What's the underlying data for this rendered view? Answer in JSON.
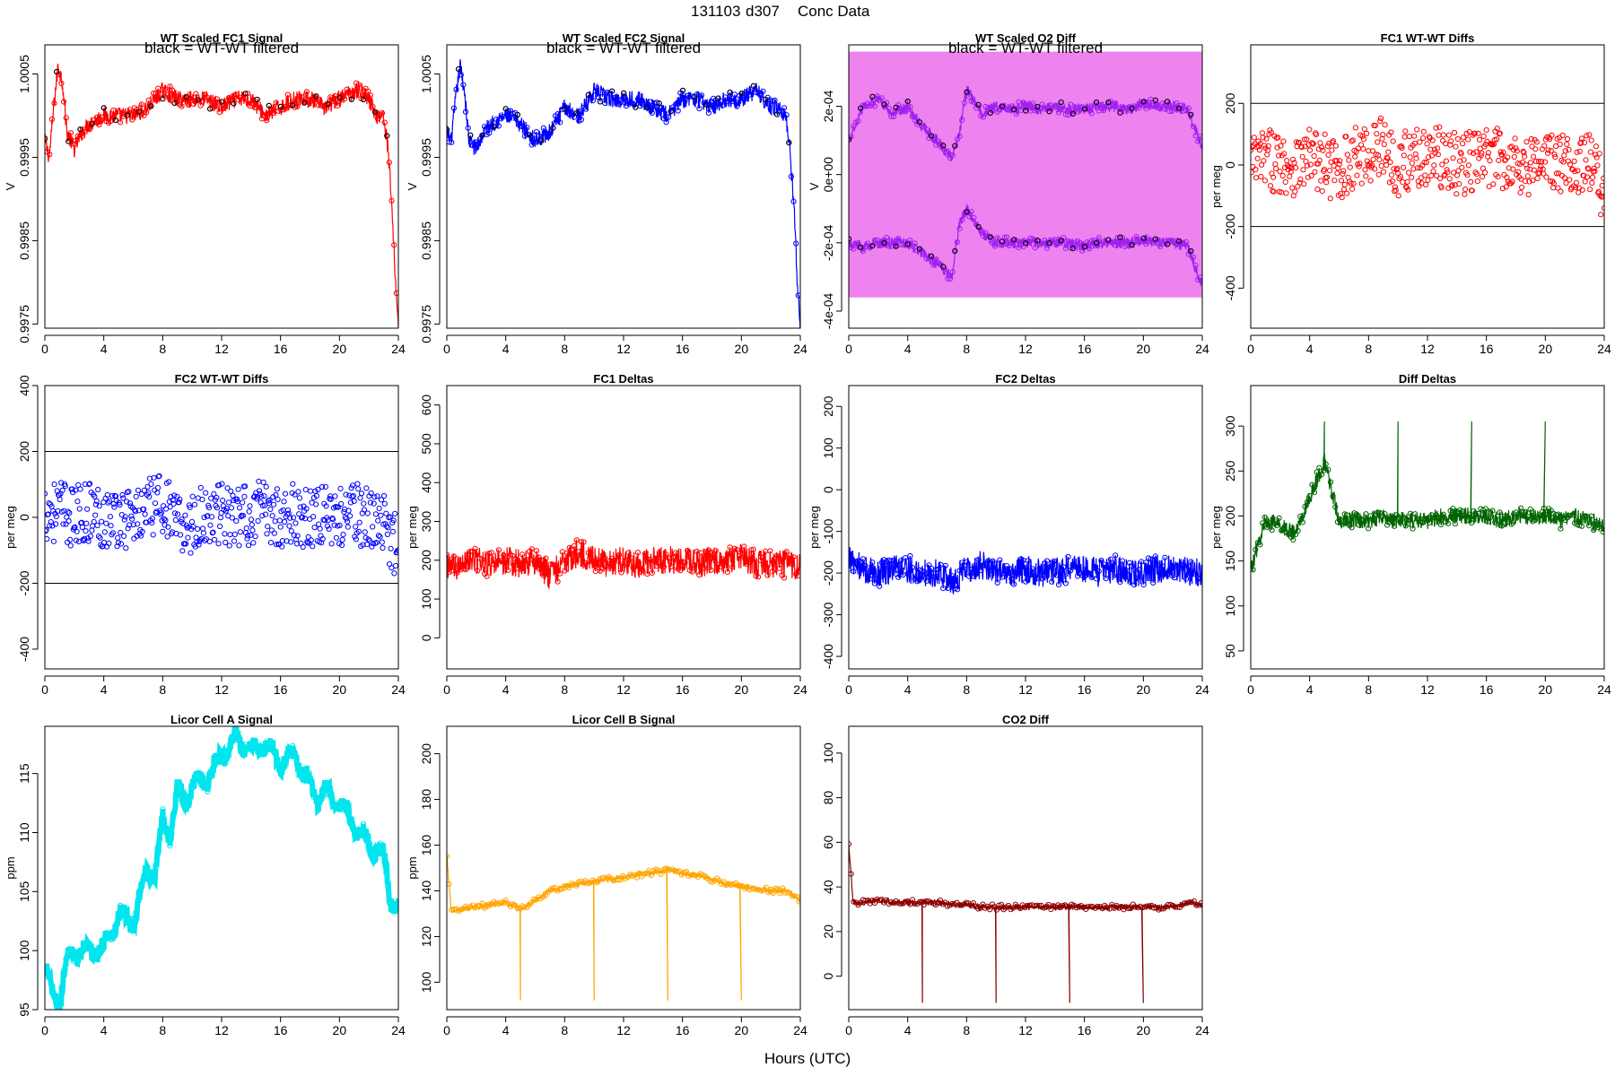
{
  "figure": {
    "title_id": "131103",
    "title_day": "d307",
    "title_kind": "Conc Data",
    "xlabel": "Hours (UTC)"
  },
  "chart_data": [
    {
      "id": "wt-fc1-signal",
      "type": "line",
      "title": "WT Scaled FC1 Signal",
      "note": "black = WT-WT filtered",
      "ylabel": "V",
      "xlim": [
        0,
        24
      ],
      "ylim": [
        0.99745,
        1.00085
      ],
      "xticks": [
        0,
        4,
        8,
        12,
        16,
        20,
        24
      ],
      "yticks": [
        0.9975,
        0.9985,
        0.9995,
        1.0005
      ],
      "ytick_labels": [
        "0.9975",
        "0.9985",
        "0.9995",
        "1.0005"
      ],
      "color": "#ff0000",
      "overlay_color": "#000000",
      "series": [
        {
          "x": [
            0,
            0.3,
            0.6,
            0.9,
            1.2,
            1.5,
            2,
            2.5,
            3,
            4,
            5,
            6,
            7,
            8,
            9,
            10,
            11,
            12,
            13,
            14,
            15,
            16,
            17,
            18,
            19,
            20,
            21,
            21.5,
            22,
            22.5,
            23,
            23.3,
            23.6,
            23.8,
            24
          ],
          "y": [
            0.9997,
            0.9995,
            1.0001,
            1.0006,
            1.0004,
            0.9998,
            0.9996,
            0.9998,
            0.9999,
            1.0,
            1.0,
            1.0,
            1.0001,
            1.0003,
            1.0002,
            1.0002,
            1.0002,
            1.0001,
            1.0002,
            1.0002,
            1.0,
            1.0001,
            1.0002,
            1.0002,
            1.0001,
            1.0002,
            1.0003,
            1.0003,
            1.0002,
            1.0,
            1.0,
            0.9996,
            0.9988,
            0.998,
            0.9975
          ]
        }
      ]
    },
    {
      "id": "wt-fc2-signal",
      "type": "line",
      "title": "WT Scaled FC2 Signal",
      "note": "black = WT-WT filtered",
      "ylabel": "V",
      "xlim": [
        0,
        24
      ],
      "ylim": [
        0.99745,
        1.00085
      ],
      "xticks": [
        0,
        4,
        8,
        12,
        16,
        20,
        24
      ],
      "yticks": [
        0.9975,
        0.9985,
        0.9995,
        1.0005
      ],
      "ytick_labels": [
        "0.9975",
        "0.9985",
        "0.9995",
        "1.0005"
      ],
      "color": "#0000ff",
      "overlay_color": "#000000",
      "series": [
        {
          "x": [
            0,
            0.3,
            0.6,
            0.9,
            1.2,
            1.5,
            2,
            2.5,
            3,
            4,
            5,
            6,
            7,
            8,
            9,
            10,
            11,
            12,
            13,
            14,
            15,
            16,
            17,
            18,
            19,
            20,
            21,
            21.5,
            22,
            22.5,
            23,
            23.3,
            23.6,
            23.8,
            24
          ],
          "y": [
            0.9998,
            0.9997,
            1.0002,
            1.0006,
            1.0003,
            0.9997,
            0.9996,
            0.9998,
            0.9999,
            1.0,
            0.9999,
            0.9997,
            0.9998,
            1.0001,
            1.0,
            1.0003,
            1.0002,
            1.0002,
            1.0002,
            1.0001,
            1.0,
            1.0002,
            1.0002,
            1.0001,
            1.0002,
            1.0002,
            1.0003,
            1.0002,
            1.0001,
            1.0001,
            1.0,
            0.9996,
            0.9988,
            0.998,
            0.9975
          ]
        }
      ]
    },
    {
      "id": "wt-o2-diff",
      "type": "line",
      "title": "WT Scaled O2 Diff",
      "note": "black = WT-WT filtered",
      "ylabel": "V",
      "xlim": [
        0,
        24
      ],
      "ylim": [
        -0.00045,
        0.00038
      ],
      "xticks": [
        0,
        4,
        8,
        12,
        16,
        20,
        24
      ],
      "yticks": [
        -0.0004,
        -0.0002,
        0,
        0.0002
      ],
      "ytick_labels": [
        "-4e-04",
        "-2e-04",
        "0e+00",
        "2e-04"
      ],
      "color": "#ee82ee",
      "point_color": "#a020f0",
      "overlay_color": "#000000",
      "band": [
        -0.00036,
        0.00036
      ],
      "series": [
        {
          "name": "upper",
          "x": [
            0,
            1,
            2,
            3,
            4,
            5,
            6,
            7,
            7.5,
            8,
            9,
            10,
            11,
            12,
            13,
            14,
            15,
            16,
            17,
            18,
            19,
            20,
            21,
            22,
            23,
            24
          ],
          "y": [
            0.0001,
            0.0002,
            0.00022,
            0.00018,
            0.0002,
            0.00014,
            0.0001,
            5e-05,
            0.00012,
            0.00025,
            0.00018,
            0.0002,
            0.00019,
            0.0002,
            0.00019,
            0.0002,
            0.00019,
            0.00019,
            0.0002,
            0.0002,
            0.00019,
            0.00021,
            0.0002,
            0.0002,
            0.00019,
            8e-05
          ]
        },
        {
          "name": "lower",
          "x": [
            0,
            1,
            2,
            3,
            4,
            5,
            6,
            7,
            7.5,
            8,
            9,
            10,
            11,
            12,
            13,
            14,
            15,
            16,
            17,
            18,
            19,
            20,
            21,
            22,
            23,
            24
          ],
          "y": [
            -0.0002,
            -0.00021,
            -0.0002,
            -0.0002,
            -0.0002,
            -0.00023,
            -0.00026,
            -0.0003,
            -0.00015,
            -0.0001,
            -0.00017,
            -0.0002,
            -0.0002,
            -0.0002,
            -0.0002,
            -0.0002,
            -0.0002,
            -0.00021,
            -0.0002,
            -0.0002,
            -0.0002,
            -0.00019,
            -0.0002,
            -0.0002,
            -0.00021,
            -0.00033
          ]
        }
      ]
    },
    {
      "id": "fc1-wtwt-diffs",
      "type": "scatter",
      "title": "FC1 WT-WT Diffs",
      "ylabel": "per meg",
      "xlim": [
        0,
        24
      ],
      "ylim": [
        -530,
        390
      ],
      "xticks": [
        0,
        4,
        8,
        12,
        16,
        20,
        24
      ],
      "yticks": [
        -400,
        -200,
        0,
        200
      ],
      "ytick_labels": [
        "-400",
        "-200",
        "0",
        "200"
      ],
      "hlines": [
        200,
        -200
      ],
      "color": "#ff0000",
      "series": [
        {
          "x": [
            0,
            1,
            2,
            3,
            4,
            5,
            6,
            7,
            8,
            9,
            10,
            11,
            12,
            13,
            14,
            15,
            16,
            17,
            18,
            19,
            20,
            21,
            22,
            23,
            24
          ],
          "y": [
            0,
            20,
            10,
            0,
            20,
            0,
            -20,
            20,
            40,
            60,
            0,
            20,
            30,
            20,
            0,
            10,
            20,
            20,
            10,
            0,
            20,
            0,
            10,
            0,
            -80
          ]
        }
      ]
    },
    {
      "id": "fc2-wtwt-diffs",
      "type": "scatter",
      "title": "FC2 WT-WT Diffs",
      "ylabel": "per meg",
      "xlim": [
        0,
        24
      ],
      "ylim": [
        -460,
        400
      ],
      "xticks": [
        0,
        4,
        8,
        12,
        16,
        20,
        24
      ],
      "yticks": [
        -400,
        -200,
        0,
        200,
        400
      ],
      "ytick_labels": [
        "-400",
        "-200",
        "0",
        "200",
        "400"
      ],
      "hlines": [
        200,
        -200
      ],
      "color": "#0000ff",
      "series": [
        {
          "x": [
            0,
            1,
            2,
            3,
            4,
            5,
            6,
            7,
            8,
            9,
            10,
            11,
            12,
            13,
            14,
            15,
            16,
            17,
            18,
            19,
            20,
            21,
            22,
            23,
            24
          ],
          "y": [
            20,
            20,
            0,
            20,
            0,
            0,
            0,
            20,
            50,
            -30,
            -20,
            10,
            10,
            0,
            10,
            20,
            0,
            10,
            0,
            10,
            0,
            10,
            0,
            -20,
            -100
          ]
        }
      ]
    },
    {
      "id": "fc1-deltas",
      "type": "line",
      "title": "FC1 Deltas",
      "ylabel": "per meg",
      "xlim": [
        0,
        24
      ],
      "ylim": [
        -80,
        650
      ],
      "xticks": [
        0,
        4,
        8,
        12,
        16,
        20,
        24
      ],
      "yticks": [
        0,
        100,
        200,
        300,
        400,
        500,
        600
      ],
      "ytick_labels": [
        "0",
        "100",
        "200",
        "300",
        "400",
        "500",
        "600"
      ],
      "color": "#ff0000",
      "series": [
        {
          "x": [
            0,
            1,
            2,
            3,
            4,
            5,
            6,
            7,
            8,
            9,
            10,
            11,
            12,
            13,
            14,
            15,
            16,
            17,
            18,
            19,
            20,
            21,
            22,
            23,
            24
          ],
          "y": [
            180,
            190,
            200,
            190,
            200,
            190,
            200,
            160,
            200,
            220,
            200,
            190,
            200,
            190,
            200,
            200,
            200,
            190,
            200,
            200,
            210,
            190,
            190,
            190,
            180
          ]
        }
      ]
    },
    {
      "id": "fc2-deltas",
      "type": "line",
      "title": "FC2 Deltas",
      "ylabel": "per meg",
      "xlim": [
        0,
        24
      ],
      "ylim": [
        -430,
        250
      ],
      "xticks": [
        0,
        4,
        8,
        12,
        16,
        20,
        24
      ],
      "yticks": [
        -400,
        -300,
        -200,
        -100,
        0,
        100,
        200
      ],
      "ytick_labels": [
        "-400",
        "-300",
        "-200",
        "-100",
        "0",
        "100",
        "200"
      ],
      "color": "#0000ff",
      "series": [
        {
          "x": [
            0,
            1,
            2,
            3,
            4,
            5,
            6,
            7,
            8,
            9,
            10,
            11,
            12,
            13,
            14,
            15,
            16,
            17,
            18,
            19,
            20,
            21,
            22,
            23,
            24
          ],
          "y": [
            -170,
            -190,
            -200,
            -190,
            -190,
            -200,
            -200,
            -220,
            -190,
            -180,
            -200,
            -200,
            -190,
            -200,
            -200,
            -190,
            -190,
            -200,
            -190,
            -200,
            -200,
            -190,
            -190,
            -195,
            -200
          ]
        }
      ]
    },
    {
      "id": "diff-deltas",
      "type": "line",
      "title": "Diff Deltas",
      "ylabel": "per meg",
      "xlim": [
        0,
        24
      ],
      "ylim": [
        30,
        345
      ],
      "xticks": [
        0,
        4,
        8,
        12,
        16,
        20,
        24
      ],
      "yticks": [
        50,
        100,
        150,
        200,
        250,
        300
      ],
      "ytick_labels": [
        "50",
        "100",
        "150",
        "200",
        "250",
        "300"
      ],
      "color": "#006400",
      "series": [
        {
          "x": [
            0,
            1,
            2,
            3,
            4,
            5,
            6,
            7,
            8,
            9,
            10,
            11,
            12,
            13,
            14,
            15,
            16,
            17,
            18,
            19,
            20,
            21,
            22,
            23,
            24
          ],
          "y": [
            140,
            195,
            190,
            180,
            220,
            260,
            195,
            195,
            195,
            200,
            195,
            195,
            195,
            200,
            200,
            200,
            200,
            195,
            200,
            200,
            200,
            195,
            200,
            195,
            190
          ]
        }
      ]
    },
    {
      "id": "licor-a",
      "type": "line",
      "title": "Licor Cell A Signal",
      "ylabel": "ppm",
      "xlim": [
        0,
        24
      ],
      "ylim": [
        95,
        119
      ],
      "xticks": [
        0,
        4,
        8,
        12,
        16,
        20,
        24
      ],
      "yticks": [
        95,
        100,
        105,
        110,
        115
      ],
      "ytick_labels": [
        "95",
        "100",
        "105",
        "110",
        "115"
      ],
      "color": "#00e5ee",
      "series": [
        {
          "x": [
            0,
            0.5,
            1,
            1.5,
            2,
            3,
            4,
            4.5,
            5,
            6,
            7,
            7.5,
            8,
            8.5,
            9,
            9.5,
            10,
            11,
            12,
            13,
            14,
            15,
            16,
            17,
            18,
            18.5,
            19,
            20,
            21,
            22,
            23,
            23.5,
            24
          ],
          "y": [
            98.5,
            96.5,
            96,
            99,
            100,
            100,
            100.2,
            101.5,
            103,
            102.5,
            107,
            106.5,
            111,
            110,
            113.5,
            112.5,
            114,
            114.5,
            116.5,
            118,
            117,
            117.5,
            116,
            116.5,
            114,
            113,
            113.5,
            112.5,
            110.5,
            109,
            108,
            104,
            104
          ]
        }
      ]
    },
    {
      "id": "licor-b",
      "type": "line",
      "title": "Licor Cell B Signal",
      "ylabel": "ppm",
      "xlim": [
        0,
        24
      ],
      "ylim": [
        88,
        212
      ],
      "xticks": [
        0,
        4,
        8,
        12,
        16,
        20,
        24
      ],
      "yticks": [
        100,
        120,
        140,
        160,
        180,
        200
      ],
      "ytick_labels": [
        "100",
        "120",
        "140",
        "160",
        "180",
        "200"
      ],
      "color": "#ffa500",
      "series": [
        {
          "x": [
            0,
            0.3,
            1,
            2,
            3,
            4,
            5,
            6,
            7,
            8,
            9,
            10,
            11,
            12,
            13,
            14,
            15,
            16,
            17,
            18,
            19,
            20,
            21,
            22,
            23,
            24
          ],
          "y": [
            156,
            131,
            132,
            133,
            134,
            135,
            132,
            136,
            140,
            142,
            143,
            144,
            145,
            146,
            147,
            148,
            149,
            148,
            147,
            145,
            143,
            142,
            141,
            140,
            140,
            136
          ]
        }
      ]
    },
    {
      "id": "co2-diff",
      "type": "line",
      "title": "CO2 Diff",
      "xlim": [
        0,
        24
      ],
      "ylim": [
        -15,
        112
      ],
      "xticks": [
        0,
        4,
        8,
        12,
        16,
        20,
        24
      ],
      "yticks": [
        0,
        20,
        40,
        60,
        80,
        100
      ],
      "ytick_labels": [
        "0",
        "20",
        "40",
        "60",
        "80",
        "100"
      ],
      "color": "#8b0000",
      "series": [
        {
          "x": [
            0,
            0.3,
            1,
            2,
            3,
            4,
            5,
            6,
            7,
            8,
            9,
            10,
            11,
            12,
            13,
            14,
            15,
            16,
            17,
            18,
            19,
            20,
            21,
            22,
            23,
            24
          ],
          "y": [
            58,
            33,
            33,
            34,
            33,
            33,
            33,
            33,
            32,
            32,
            31,
            31,
            31,
            31,
            31,
            31,
            31,
            31,
            31,
            31,
            31,
            31,
            31,
            31,
            33,
            32
          ]
        }
      ]
    }
  ]
}
